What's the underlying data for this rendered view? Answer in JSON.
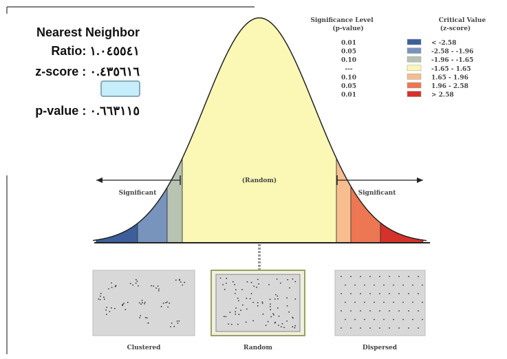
{
  "result": {
    "title": "Nearest Neighbor",
    "ratio": "Ratio: ١.٠٤٥٥٤١",
    "z_score": "z-score : ٠.٤٣٥٦١٦",
    "p_value": "p-value : ٠.٦٦٣١١٥"
  },
  "legend": {
    "p_header": [
      "Significance Level",
      "(p-value)"
    ],
    "z_header": [
      "Critical Value",
      "(z-score)"
    ],
    "rows": [
      {
        "p": "0.01",
        "z": "< -2.58",
        "color": "#3c5f9c"
      },
      {
        "p": "0.05",
        "z": "-2.58 - -1.96",
        "color": "#7894bd"
      },
      {
        "p": "0.10",
        "z": "-1.96 - -1.65",
        "color": "#b9c3b2"
      },
      {
        "p": "---",
        "z": "-1.65 - 1.65",
        "color": "#fbf8b6"
      },
      {
        "p": "0.10",
        "z": "1.65 - 1.96",
        "color": "#f6bd8e"
      },
      {
        "p": "0.05",
        "z": "1.96 - 2.58",
        "color": "#ec7752"
      },
      {
        "p": "0.01",
        "z": "> 2.58",
        "color": "#d4322b"
      }
    ]
  },
  "diagram": {
    "left_label": "Significant",
    "center_label": "(Random)",
    "right_label": "Significant",
    "patterns": [
      "Clustered",
      "Random",
      "Dispersed"
    ]
  }
}
